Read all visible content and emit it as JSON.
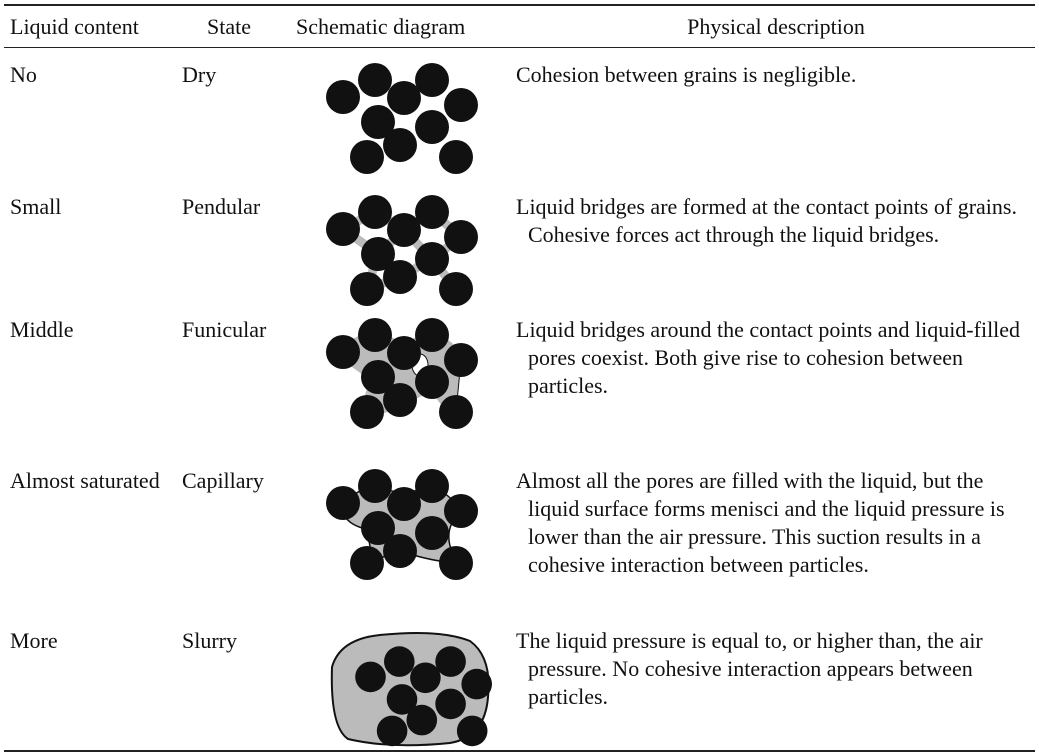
{
  "table": {
    "header": [
      "Liquid content",
      "State",
      "Schematic diagram",
      "Physical description"
    ],
    "rows": [
      [
        "No",
        "Dry",
        "Cohesion between grains is negligible."
      ],
      [
        "Small",
        "Pendular",
        "Liquid bridges are formed at the contact points of grains. Cohesive forces act through the liquid bridges."
      ],
      [
        "Middle",
        "Funicular",
        "Liquid bridges around the contact points and liquid-filled pores coexist. Both give rise to cohesion between particles."
      ],
      [
        "Almost saturated",
        "Capillary",
        "Almost all the pores are filled with the liquid, but the liquid surface forms menisci and the liquid pressure is lower than the air pressure. This suction results in a cohesive interaction between particles."
      ],
      [
        "More",
        "Slurry",
        "The liquid pressure is equal to, or higher than, the air pressure. No cohesive interaction appears between particles."
      ]
    ]
  }
}
